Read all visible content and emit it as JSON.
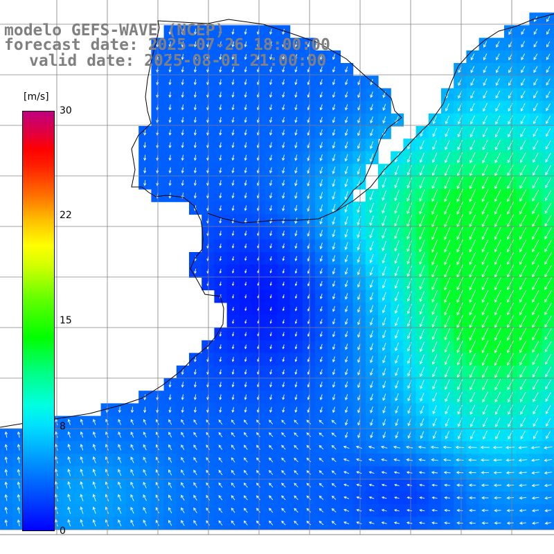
{
  "title": {
    "line1": "modelo GEFS-WAVE (NCEP)",
    "line2": "forecast date: 2025-07-26 18:00:00",
    "line3": "valid date: 2025-08-01 21:00:00"
  },
  "colorbar": {
    "unit": "[m/s]",
    "min": 0,
    "max": 30,
    "ticks": [
      "30",
      "22",
      "15",
      "8",
      "0"
    ],
    "tick_values": [
      30,
      22,
      15,
      8,
      0
    ],
    "stops": [
      "#0000ff",
      "#0090ff",
      "#00e0ff",
      "#00ff80",
      "#00ff00",
      "#d0ff00",
      "#ffff00",
      "#ff7000",
      "#ff0000",
      "#c00080"
    ]
  },
  "colors": {
    "land": "#ffffff",
    "coastline": "#000000",
    "grid": "#808080",
    "vectors": "#ffffff"
  },
  "field": {
    "variable": "wind speed",
    "units": "m/s",
    "max_speed": 13
  }
}
